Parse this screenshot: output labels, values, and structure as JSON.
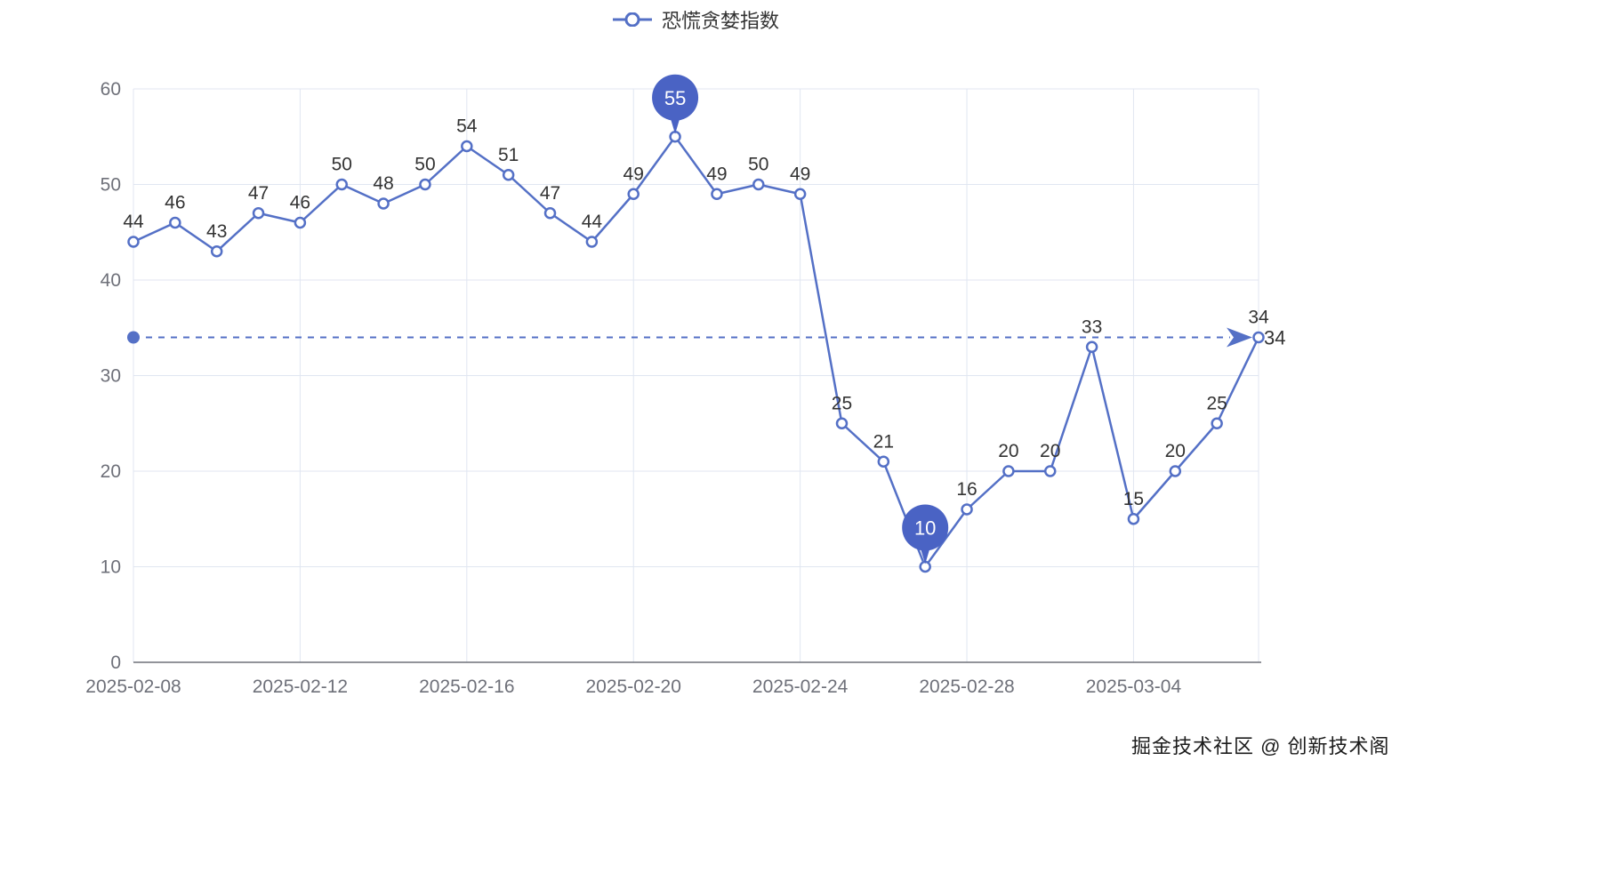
{
  "legend": {
    "label": "恐慌贪婪指数"
  },
  "watermark": "掘金技术社区 @ 创新技术阁",
  "chart_data": {
    "type": "line",
    "title": "恐慌贪婪指数",
    "x": [
      "2025-02-08",
      "2025-02-09",
      "2025-02-10",
      "2025-02-11",
      "2025-02-12",
      "2025-02-13",
      "2025-02-14",
      "2025-02-15",
      "2025-02-16",
      "2025-02-17",
      "2025-02-18",
      "2025-02-19",
      "2025-02-20",
      "2025-02-21",
      "2025-02-22",
      "2025-02-23",
      "2025-02-24",
      "2025-02-25",
      "2025-02-26",
      "2025-02-27",
      "2025-02-28",
      "2025-03-01",
      "2025-03-02",
      "2025-03-03",
      "2025-03-04",
      "2025-03-05",
      "2025-03-06",
      "2025-03-07"
    ],
    "values": [
      44,
      46,
      43,
      47,
      46,
      50,
      48,
      50,
      54,
      51,
      47,
      44,
      49,
      55,
      49,
      50,
      49,
      25,
      21,
      10,
      16,
      20,
      20,
      33,
      15,
      20,
      25,
      34
    ],
    "x_tick_labels": [
      "2025-02-08",
      "2025-02-12",
      "2025-02-16",
      "2025-02-20",
      "2025-02-24",
      "2025-02-28",
      "2025-03-04"
    ],
    "x_tick_indices": [
      0,
      4,
      8,
      12,
      16,
      20,
      24
    ],
    "ylim": [
      0,
      60
    ],
    "y_ticks": [
      0,
      10,
      20,
      30,
      40,
      50,
      60
    ],
    "grid": true,
    "legend_position": "top",
    "mark_line": {
      "value": 34
    },
    "max_point": {
      "index": 13,
      "value": 55
    },
    "min_point": {
      "index": 19,
      "value": 10
    },
    "colors": {
      "line": "#5470C6",
      "pin": "#4A63C4",
      "label": "#333333",
      "axis_label": "#6E7079",
      "grid": "#E0E6F1",
      "axis_line": "#6E7079"
    }
  }
}
